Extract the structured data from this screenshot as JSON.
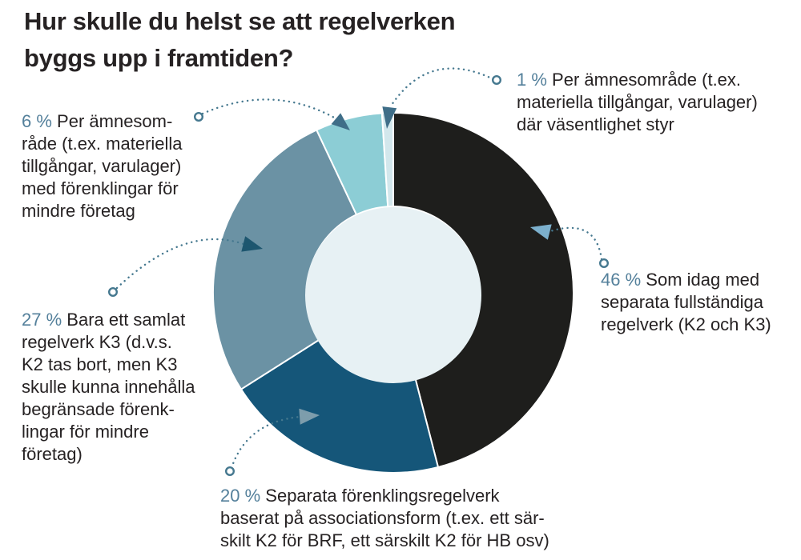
{
  "title_lines": [
    "Hur skulle du helst se att regelverken",
    "byggs upp i framtiden?"
  ],
  "colors": {
    "background": "#ffffff",
    "text": "#262223",
    "percent_accent": "#54809b",
    "connector": "#45788f",
    "hole": "#e7f1f4",
    "slice_separator": "#ffffff"
  },
  "chart_data": {
    "type": "pie",
    "subtype": "donut",
    "title": "Hur skulle du helst se att regelverken byggs upp i framtiden?",
    "unit": "%",
    "direction": "clockwise",
    "start_angle_deg_from_top": 0,
    "hole_color": "#e7f1f4",
    "slices": [
      {
        "name": "s46",
        "value": 46,
        "color": "#1e1e1c",
        "label": "Som idag med separata fullständiga regelverk (K2 och K3)"
      },
      {
        "name": "s20",
        "value": 20,
        "color": "#155679",
        "label": "Separata förenklingsregelverk baserat på associationsform (t.ex. ett särskilt K2 för BRF, ett särskilt K2 för HB osv)"
      },
      {
        "name": "s27",
        "value": 27,
        "color": "#6b92a4",
        "label": "Bara ett samlat regelverk K3 (d.v.s. K2 tas bort, men K3 skulle kunna innehålla begränsade förenklingar för mindre företag)"
      },
      {
        "name": "s6",
        "value": 6,
        "color": "#8ccdd5",
        "label": "Per ämnesområde (t.ex. materiella tillgångar, varulager) med förenklingar för mindre företag"
      },
      {
        "name": "s1",
        "value": 1,
        "color": "#d2e7ec",
        "label": "Per ämnesområde (t.ex. materiella tillgångar, varulager) där väsentlighet styr"
      }
    ]
  },
  "callouts": {
    "s1": {
      "pct": "1 %",
      "lines": [
        "Per ämnesområde (t.ex.",
        "materiella tillgångar, varulager)",
        "där väsentlighet styr"
      ],
      "arrow_color": "#3f6e88"
    },
    "s46": {
      "pct": "46 %",
      "lines": [
        "Som idag med",
        "separata fullständiga",
        "regelverk (K2 och K3)"
      ],
      "arrow_color": "#7cb0cd"
    },
    "s20": {
      "pct": "20 %",
      "lines": [
        "Separata förenklingsregelverk",
        "baserat på associationsform (t.ex. ett sär-",
        "skilt K2 för BRF, ett särskilt K2 för HB osv)"
      ],
      "arrow_color": "#7d9dac"
    },
    "s27": {
      "pct": "27 %",
      "lines": [
        "Bara ett samlat",
        "regelverk K3 (d.v.s.",
        "K2 tas bort, men K3",
        "skulle kunna innehålla",
        "begränsade förenk-",
        "lingar för mindre",
        "företag)"
      ],
      "arrow_color": "#1d566f"
    },
    "s6": {
      "pct": "6 %",
      "lines": [
        "Per ämnesom-",
        "råde (t.ex. materiella",
        "tillgångar, varulager)",
        "med förenklingar för",
        "mindre företag"
      ],
      "arrow_color": "#3f6e88"
    }
  }
}
